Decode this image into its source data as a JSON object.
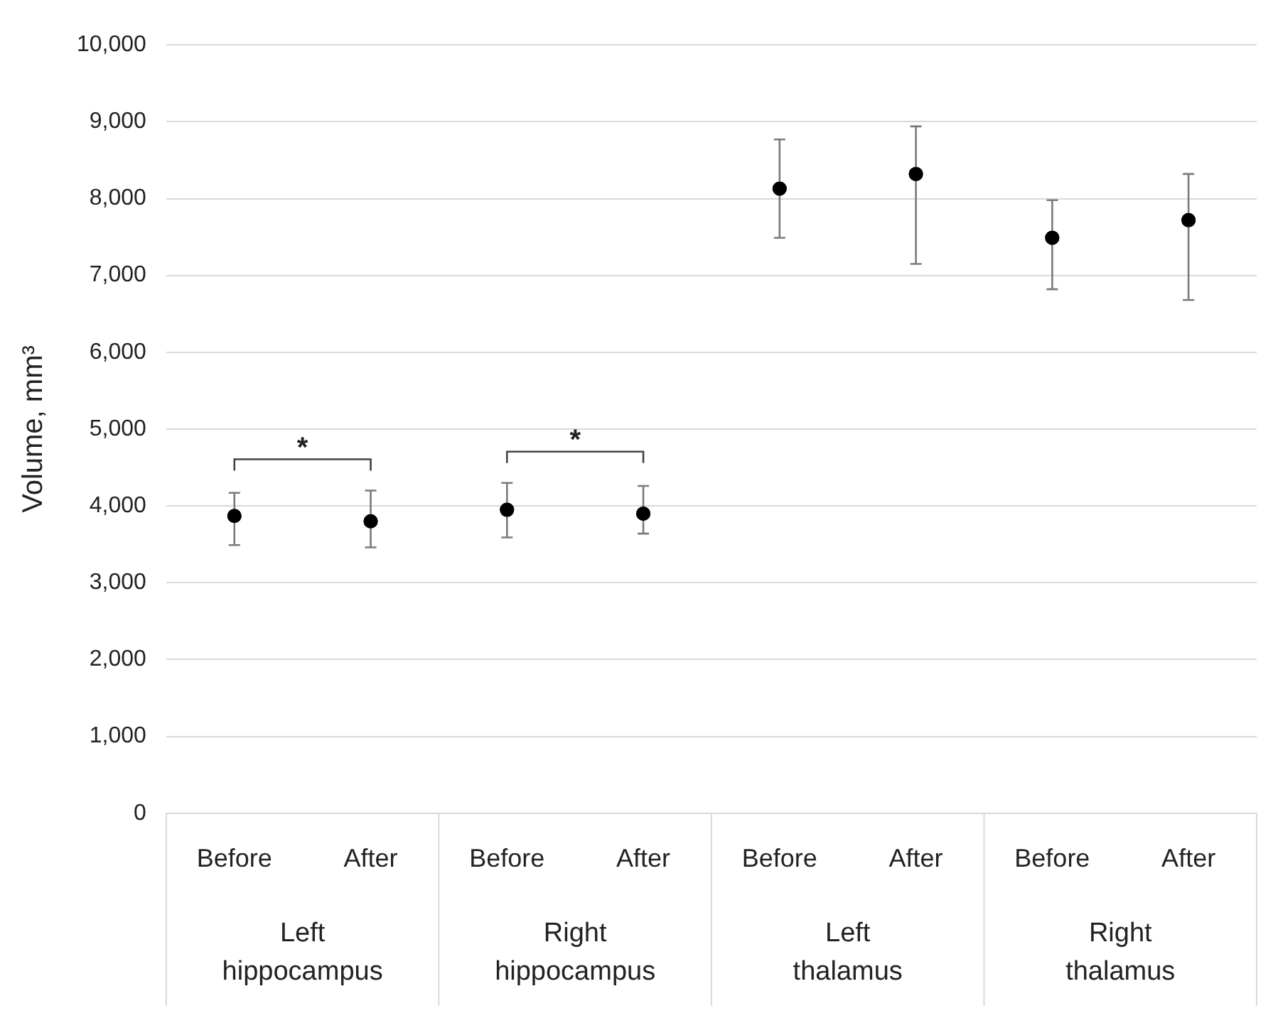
{
  "chart_data": {
    "type": "scatter",
    "ylabel": "Volume, mm³",
    "categories": [
      "Before",
      "After",
      "Before",
      "After",
      "Before",
      "After",
      "Before",
      "After"
    ],
    "series": [
      {
        "color": "#000000",
        "values": [
          3870,
          3800,
          3950,
          3900,
          8130,
          8320,
          7490,
          7720
        ],
        "errors": [
          [
            3490,
            4170
          ],
          [
            3460,
            4200
          ],
          [
            3590,
            4300
          ],
          [
            3640,
            4260
          ],
          [
            7490,
            8770
          ],
          [
            7150,
            8940
          ],
          [
            6820,
            7980
          ],
          [
            6680,
            8320
          ]
        ]
      }
    ],
    "annotations": [
      "Left hippocampus",
      "Right hippocampus",
      "Left thalamus",
      "Right thalamus",
      "*",
      "*"
    ],
    "ylim": [
      0,
      10000
    ],
    "yticks": [
      0,
      {
        "value": 1000,
        "label": "1,000"
      },
      {
        "value": 2000,
        "label": "2,000"
      },
      {
        "value": 3000,
        "label": "3,000"
      },
      {
        "value": 4000,
        "label": "4,000"
      },
      {
        "value": 5000,
        "label": "5,000"
      },
      {
        "value": 6000,
        "label": "6,000"
      },
      {
        "value": 7000,
        "label": "7,000"
      },
      {
        "value": 8000,
        "label": "8,000"
      },
      {
        "value": 9000,
        "label": "9,000"
      },
      {
        "value": 10000,
        "label": "10,000"
      }
    ],
    "grid": "y",
    "legend": false,
    "marker": "circle"
  }
}
